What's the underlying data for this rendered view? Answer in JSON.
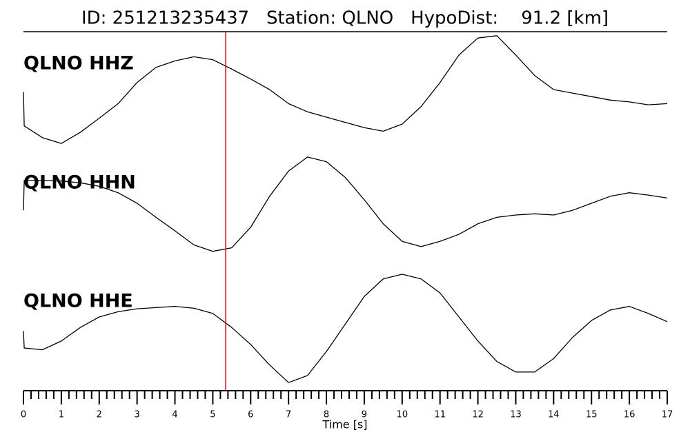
{
  "chart_data": {
    "type": "line",
    "title": "ID: 251213235437   Station: QLNO   HypoDist:    91.2 [km]",
    "xlabel": "Time [s]",
    "x": [
      0,
      0.02,
      0.5,
      1,
      1.5,
      2,
      2.5,
      3,
      3.5,
      4,
      4.5,
      5,
      5.5,
      6,
      6.5,
      7,
      7.5,
      8,
      8.5,
      9,
      9.5,
      10,
      10.5,
      11,
      11.5,
      12,
      12.5,
      13,
      13.5,
      14,
      14.5,
      15,
      15.5,
      16,
      16.5,
      17
    ],
    "xlim": [
      0,
      17
    ],
    "xticks": [
      0,
      1,
      2,
      3,
      4,
      5,
      6,
      7,
      8,
      9,
      10,
      11,
      12,
      13,
      14,
      15,
      16,
      17
    ],
    "xminorticks": [
      0.2,
      0.4,
      0.6,
      0.8,
      1.2,
      1.4,
      1.6,
      1.8,
      2.2,
      2.4,
      2.6,
      2.8,
      3.2,
      3.4,
      3.6,
      3.8,
      4.2,
      4.4,
      4.6,
      4.8,
      5.2,
      5.4,
      5.6,
      5.8,
      6.2,
      6.4,
      6.6,
      6.8,
      7.2,
      7.4,
      7.6,
      7.8,
      8.2,
      8.4,
      8.6,
      8.8,
      9.2,
      9.4,
      9.6,
      9.8,
      10.2,
      10.4,
      10.6,
      10.8,
      11.2,
      11.4,
      11.6,
      11.8,
      12.2,
      12.4,
      12.6,
      12.8,
      13.2,
      13.4,
      13.6,
      13.8,
      14.2,
      14.4,
      14.6,
      14.8,
      15.2,
      15.4,
      15.6,
      15.8,
      16.2,
      16.4,
      16.6,
      16.8
    ],
    "ylim": [
      -1,
      1
    ],
    "label_color": "#4a9a0a",
    "pick": {
      "x": 5.34,
      "color": "#e8000b"
    },
    "series": [
      {
        "name": "QLNO HHZ",
        "color": "#000000",
        "values": [
          -0.04,
          -0.62,
          -0.82,
          -0.92,
          -0.73,
          -0.49,
          -0.24,
          0.12,
          0.38,
          0.49,
          0.56,
          0.51,
          0.35,
          0.18,
          0,
          -0.24,
          -0.38,
          -0.47,
          -0.56,
          -0.65,
          -0.71,
          -0.59,
          -0.29,
          0.12,
          0.59,
          0.88,
          0.92,
          0.59,
          0.24,
          0,
          -0.06,
          -0.12,
          -0.18,
          -0.21,
          -0.26,
          -0.24
        ]
      },
      {
        "name": "QLNO HHN",
        "color": "#000000",
        "values": [
          -0.12,
          0.39,
          0.39,
          0.38,
          0.35,
          0.29,
          0.18,
          0,
          -0.24,
          -0.47,
          -0.71,
          -0.82,
          -0.76,
          -0.41,
          0.12,
          0.55,
          0.79,
          0.71,
          0.44,
          0.06,
          -0.35,
          -0.65,
          -0.74,
          -0.65,
          -0.53,
          -0.35,
          -0.24,
          -0.2,
          -0.18,
          -0.2,
          -0.12,
          0,
          0.12,
          0.18,
          0.14,
          0.09
        ]
      },
      {
        "name": "QLNO HHE",
        "color": "#000000",
        "values": [
          -0.04,
          -0.33,
          -0.36,
          -0.21,
          0.02,
          0.2,
          0.29,
          0.34,
          0.36,
          0.38,
          0.35,
          0.26,
          0.02,
          -0.27,
          -0.62,
          -0.92,
          -0.8,
          -0.39,
          0.08,
          0.55,
          0.85,
          0.93,
          0.85,
          0.61,
          0.2,
          -0.21,
          -0.56,
          -0.74,
          -0.74,
          -0.51,
          -0.15,
          0.14,
          0.32,
          0.38,
          0.26,
          0.12
        ]
      }
    ]
  }
}
